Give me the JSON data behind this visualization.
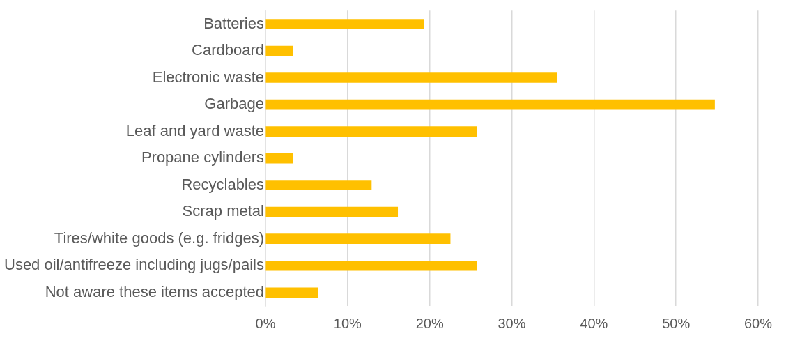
{
  "chart_data": {
    "type": "bar",
    "orientation": "horizontal",
    "categories": [
      "Batteries",
      "Cardboard",
      "Electronic waste",
      "Garbage",
      "Leaf and yard waste",
      "Propane cylinders",
      "Recyclables",
      "Scrap metal",
      "Tires/white goods (e.g. fridges)",
      "Used oil/antifreeze including jugs/pails",
      "Not aware these items accepted"
    ],
    "values": [
      19.3,
      3.3,
      35.5,
      54.7,
      25.7,
      3.3,
      12.9,
      16.1,
      22.5,
      25.7,
      6.4
    ],
    "color": "#ffc000",
    "xlim": [
      0,
      60
    ],
    "xticks": [
      {
        "value": 0,
        "label": "0%"
      },
      {
        "value": 10,
        "label": "10%"
      },
      {
        "value": 20,
        "label": "20%"
      },
      {
        "value": 30,
        "label": "30%"
      },
      {
        "value": 40,
        "label": "40%"
      },
      {
        "value": 50,
        "label": "50%"
      },
      {
        "value": 60,
        "label": "60%"
      }
    ],
    "grid": "x"
  }
}
